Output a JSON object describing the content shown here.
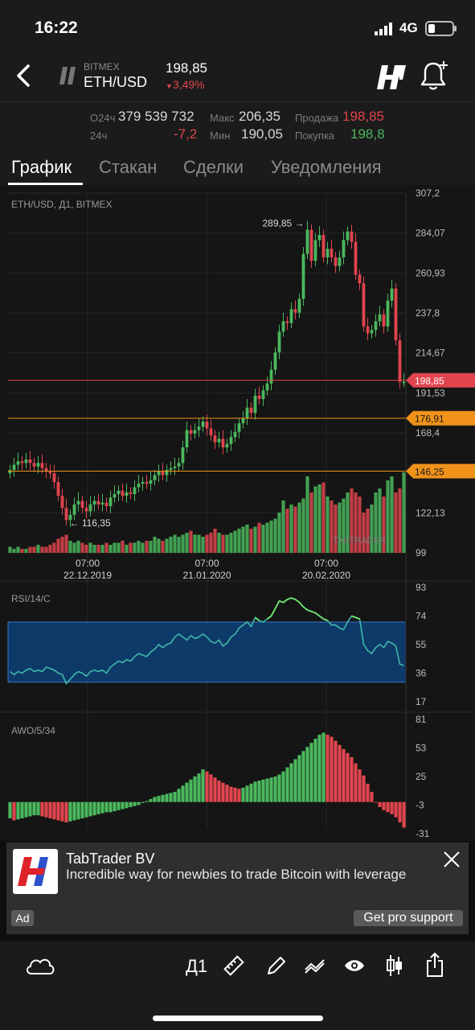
{
  "status_bar": {
    "time": "16:22",
    "network": "4G"
  },
  "header": {
    "exchange": "BITMEX",
    "pair": "ETH/USD",
    "price": "198,85",
    "change": "3,49%"
  },
  "stats": {
    "vol_label": "O24ч",
    "vol_value": "379 539 732",
    "chg_label": "24ч",
    "chg_value": "-7,2",
    "max_label": "Макс",
    "max_value": "206,35",
    "min_label": "Мин",
    "min_value": "190,05",
    "sell_label": "Продажа",
    "sell_value": "198,85",
    "buy_label": "Покупка",
    "buy_value": "198,8"
  },
  "tabs": [
    {
      "label": "График",
      "active": true
    },
    {
      "label": "Стакан",
      "active": false
    },
    {
      "label": "Сделки",
      "active": false
    },
    {
      "label": "Уведомления",
      "active": false
    }
  ],
  "chart_data": [
    {
      "type": "candlestick",
      "title": "ETH/USD, Д1, BITMEX",
      "y_ticks": [
        "307,2",
        "284,07",
        "260,93",
        "237,8",
        "214,67",
        "191,53",
        "168,4",
        "122,13",
        "99"
      ],
      "ylim": [
        99,
        307.2
      ],
      "x_ticks": [
        {
          "time": "07:00",
          "date": "22.12.2019"
        },
        {
          "time": "07:00",
          "date": "21.01.2020"
        },
        {
          "time": "07:00",
          "date": "20.02.2020"
        }
      ],
      "price_lines": [
        {
          "value": 198.85,
          "label": "198,85",
          "color": "#e0454d"
        },
        {
          "value": 176.91,
          "label": "176,91",
          "color": "#f0921a"
        },
        {
          "value": 146.25,
          "label": "146,25",
          "color": "#f0921a"
        }
      ],
      "annotations": [
        {
          "label": "289,85",
          "value": 289.85
        },
        {
          "label": "116,35",
          "value": 116.35
        }
      ],
      "watermark": "TABTRADER",
      "close_values": [
        147,
        150,
        152,
        151,
        153,
        151,
        149,
        151,
        148,
        146,
        145,
        140,
        132,
        125,
        118,
        121,
        127,
        129,
        125,
        123,
        127,
        129,
        127,
        128,
        126,
        131,
        133,
        135,
        132,
        134,
        133,
        137,
        139,
        140,
        139,
        141,
        144,
        146,
        144,
        147,
        148,
        149,
        151,
        160,
        170,
        168,
        170,
        172,
        175,
        171,
        167,
        163,
        165,
        160,
        162,
        166,
        169,
        174,
        177,
        183,
        180,
        190,
        188,
        193,
        197,
        205,
        215,
        227,
        233,
        232,
        240,
        238,
        246,
        272,
        286,
        268,
        280,
        283,
        270,
        275,
        270,
        265,
        270,
        280,
        285,
        279,
        260,
        255,
        230,
        226,
        228,
        233,
        237,
        230,
        245,
        252,
        222,
        198,
        198
      ],
      "volume_values": [
        3,
        2,
        3,
        2,
        2,
        3,
        3,
        4,
        3,
        3,
        4,
        5,
        7,
        8,
        9,
        6,
        5,
        6,
        5,
        4,
        5,
        4,
        4,
        4,
        5,
        4,
        5,
        5,
        6,
        4,
        5,
        5,
        6,
        5,
        6,
        6,
        8,
        7,
        6,
        7,
        8,
        9,
        8,
        9,
        10,
        11,
        9,
        9,
        8,
        9,
        10,
        12,
        10,
        9,
        9,
        10,
        11,
        12,
        13,
        14,
        12,
        13,
        15,
        14,
        15,
        16,
        17,
        20,
        26,
        22,
        24,
        23,
        25,
        27,
        38,
        30,
        33,
        34,
        35,
        28,
        26,
        24,
        25,
        27,
        30,
        32,
        30,
        28,
        20,
        22,
        24,
        30,
        32,
        28,
        36,
        38,
        30,
        32,
        40
      ]
    },
    {
      "type": "line",
      "title": "RSI/14/C",
      "y_ticks": [
        "93",
        "74",
        "55",
        "36",
        "17"
      ],
      "ylim": [
        17,
        93
      ],
      "band": [
        30,
        70
      ],
      "values": [
        37,
        35,
        37,
        36,
        38,
        39,
        37,
        38,
        37,
        40,
        39,
        38,
        36,
        35,
        29,
        32,
        35,
        37,
        36,
        34,
        37,
        38,
        37,
        38,
        36,
        40,
        42,
        44,
        43,
        45,
        44,
        47,
        49,
        48,
        47,
        50,
        52,
        55,
        53,
        55,
        56,
        60,
        62,
        60,
        58,
        61,
        59,
        60,
        62,
        60,
        57,
        56,
        58,
        54,
        56,
        60,
        62,
        66,
        68,
        70,
        67,
        73,
        71,
        70,
        72,
        74,
        79,
        84,
        83,
        85,
        86,
        85,
        83,
        80,
        78,
        77,
        76,
        74,
        72,
        71,
        68,
        68,
        66,
        65,
        70,
        74,
        73,
        72,
        55,
        51,
        49,
        53,
        55,
        53,
        57,
        56,
        54,
        42,
        41
      ]
    },
    {
      "type": "bar",
      "title": "AWO/5/34",
      "y_ticks": [
        "81",
        "53",
        "25",
        "-3",
        "-31"
      ],
      "ylim": [
        -31,
        81
      ],
      "values": [
        -16,
        -18,
        -17,
        -16,
        -15,
        -14,
        -13,
        -13,
        -14,
        -15,
        -16,
        -17,
        -18,
        -19,
        -20,
        -19,
        -18,
        -17,
        -16,
        -15,
        -14,
        -13,
        -12,
        -11,
        -10,
        -10,
        -9,
        -8,
        -7,
        -6,
        -5,
        -4,
        -3,
        -1,
        1,
        3,
        5,
        6,
        7,
        8,
        9,
        10,
        13,
        16,
        19,
        22,
        25,
        28,
        32,
        30,
        27,
        24,
        21,
        19,
        17,
        15,
        14,
        13,
        14,
        16,
        18,
        20,
        21,
        22,
        23,
        24,
        25,
        27,
        30,
        34,
        38,
        42,
        46,
        50,
        54,
        58,
        62,
        66,
        68,
        66,
        64,
        60,
        56,
        52,
        48,
        44,
        38,
        32,
        26,
        18,
        10,
        0,
        -5,
        -8,
        -10,
        -12,
        -15,
        -20,
        -25
      ]
    }
  ],
  "ad": {
    "title": "TabTrader BV",
    "text": "Incredible way for newbies to trade Bitcoin with leverage",
    "badge": "Ad",
    "cta": "Get pro support"
  },
  "toolbar": {
    "interval": "Д1"
  },
  "colors": {
    "up": "#4bb85d",
    "down": "#e0454d",
    "level": "#f0921a",
    "rsi_band": "#0e3a6a"
  }
}
